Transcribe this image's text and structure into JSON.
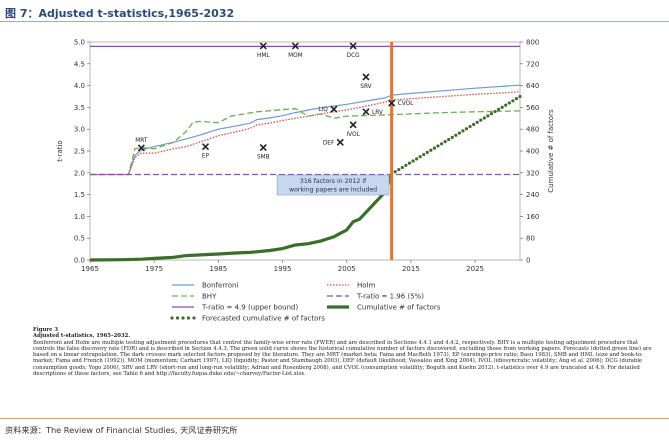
{
  "figure_title": "图 7：Adjusted t-statistics,1965-2032",
  "source_note": "资料来源：The Review of Financial Studies, 天风证券研究所",
  "caption": {
    "title": "Figure 3",
    "subtitle": "Adjusted t-statistics, 1965–2032.",
    "body": "Bonferroni and Holm are multiple testing adjustment procedures that control the family-wise error rate (FWER) and are described in Sections 4.4.1 and 4.4.2, respectively. BHY is a multiple testing adjustment procedure that controls the false discovery rate (FDR) and is described in Section 4.4.3. The green solid curve shows the historical cumulative number of factors discovered, excluding those from working papers. Forecasts (dotted green line) are based on a linear extrapolation. The dark crosses mark selected factors proposed by the literature. They are MRT (market beta; Fama and MacBeth 1973), EP (earnings-price ratio; Basu 1983), SMB and HML (size and book-to-market; Fama and French (1992)), MOM (momentum; Carhart 1997), LIQ (liquidity; Pastor and Stambaugh 2003), DEF (default likelihood; Vassalou and Xing 2004), IVOL (idiosyncratic volatility; Ang et al. 2006); DCG (durable consumption goods; Yogo 2006), SRV and LRV (short-run and long-run volatility; Adrian and Rosenberg 2008), and CVOL (consumption volatility; Boguth and Kuehn 2012). t-statistics over 4.9 are truncated at 4.9. For detailed descriptions of these factors, see Table 6 and http://faculty.fuqua.duke.edu/~charvey/Factor-List.xlsx."
  },
  "chart_data": {
    "type": "line",
    "xlim": [
      1965,
      2032
    ],
    "x_ticks": [
      1965,
      1975,
      1985,
      1995,
      2005,
      2015,
      2025
    ],
    "ylabel": "t-ratio",
    "ylim": [
      0,
      5
    ],
    "y_ticks": [
      0.0,
      0.5,
      1.0,
      1.5,
      2.0,
      2.5,
      3.0,
      3.5,
      4.0,
      4.5,
      5.0
    ],
    "y2label": "Cumulative # of factors",
    "y2lim": [
      0,
      800
    ],
    "y2_ticks": [
      0,
      80,
      160,
      240,
      320,
      400,
      480,
      560,
      640,
      720,
      800
    ],
    "colors": {
      "bonferroni": "#6f9bd4",
      "holm": "#e0504a",
      "bhy": "#6ab04c",
      "t49": "#8a4fb0",
      "t196": "#8a4fb0",
      "cumulative": "#3b6e2a",
      "forecast": "#3b6e2a",
      "vline": "#e8732a",
      "marker": "#222222"
    },
    "series": [
      {
        "name": "Bonferroni",
        "key": "bonferroni",
        "style": "solid",
        "x": [
          1965,
          1971,
          1972,
          1973,
          1975,
          1978,
          1980,
          1982,
          1985,
          1988,
          1990,
          1991,
          1993,
          1995,
          1997,
          1999,
          2001,
          2003,
          2005,
          2007,
          2009,
          2011,
          2012,
          2015,
          2020,
          2025,
          2030,
          2032
        ],
        "y": [
          1.96,
          1.96,
          2.4,
          2.52,
          2.6,
          2.7,
          2.78,
          2.86,
          3.0,
          3.08,
          3.14,
          3.22,
          3.26,
          3.31,
          3.38,
          3.44,
          3.49,
          3.53,
          3.57,
          3.62,
          3.67,
          3.72,
          3.78,
          3.82,
          3.88,
          3.94,
          3.99,
          4.01
        ]
      },
      {
        "name": "Holm",
        "key": "holm",
        "style": "dotted",
        "x": [
          1965,
          1971,
          1972,
          1973,
          1975,
          1978,
          1980,
          1982,
          1985,
          1988,
          1990,
          1991,
          1993,
          1995,
          1997,
          1999,
          2001,
          2003,
          2005,
          2007,
          2009,
          2011,
          2012,
          2015,
          2020,
          2025,
          2030,
          2032
        ],
        "y": [
          1.96,
          1.96,
          2.35,
          2.45,
          2.45,
          2.55,
          2.6,
          2.7,
          2.85,
          2.95,
          3.02,
          3.1,
          3.14,
          3.2,
          3.25,
          3.3,
          3.35,
          3.4,
          3.44,
          3.5,
          3.56,
          3.62,
          3.67,
          3.7,
          3.75,
          3.8,
          3.84,
          3.86
        ]
      },
      {
        "name": "BHY",
        "key": "bhy",
        "style": "dashed",
        "x": [
          1965,
          1971,
          1972,
          1973,
          1975,
          1978,
          1980,
          1981,
          1982,
          1985,
          1987,
          1991,
          1995,
          1997,
          1999,
          2001,
          2003,
          2005,
          2010,
          2015,
          2020,
          2025,
          2032
        ],
        "y": [
          1.96,
          1.96,
          2.55,
          2.58,
          2.55,
          2.7,
          2.95,
          3.15,
          3.18,
          3.15,
          3.3,
          3.4,
          3.45,
          3.47,
          3.3,
          3.35,
          3.25,
          3.3,
          3.32,
          3.35,
          3.38,
          3.4,
          3.42
        ]
      },
      {
        "name": "T-ratio = 4.9 (upper bound)",
        "key": "t49",
        "style": "solid",
        "x": [
          1965,
          2032
        ],
        "y": [
          4.9,
          4.9
        ]
      },
      {
        "name": "T-ratio = 1.96 (5%)",
        "key": "t196",
        "style": "dashed",
        "x": [
          1965,
          2032
        ],
        "y": [
          1.96,
          1.96
        ]
      },
      {
        "name": "Cumulative # of factors",
        "key": "cumulative",
        "style": "thick",
        "axis": "y2",
        "x": [
          1965,
          1970,
          1973,
          1975,
          1978,
          1980,
          1983,
          1985,
          1988,
          1990,
          1993,
          1995,
          1997,
          1999,
          2001,
          2003,
          2004,
          2005,
          2006,
          2007,
          2008,
          2009,
          2010,
          2011,
          2012
        ],
        "y": [
          0,
          1,
          3,
          6,
          10,
          16,
          20,
          22,
          26,
          28,
          35,
          42,
          55,
          60,
          70,
          85,
          98,
          110,
          140,
          150,
          175,
          200,
          225,
          250,
          316
        ]
      },
      {
        "name": "Forecasted cumulative # of factors",
        "key": "forecast",
        "style": "dots",
        "axis": "y2",
        "x": [
          2012,
          2032
        ],
        "y": [
          316,
          600
        ]
      }
    ],
    "legend": {
      "position": "bottom",
      "items": [
        {
          "label": "Bonferroni",
          "key": "bonferroni",
          "style": "solid"
        },
        {
          "label": "Holm",
          "key": "holm",
          "style": "dotted"
        },
        {
          "label": "BHY",
          "key": "bhy",
          "style": "dashed"
        },
        {
          "label": "T-ratio = 1.96 (5%)",
          "key": "t196",
          "style": "dashed"
        },
        {
          "label": "T-ratio = 4.9 (upper bound)",
          "key": "t49",
          "style": "solid"
        },
        {
          "label": "Cumulative # of factors",
          "key": "cumulative",
          "style": "thick"
        },
        {
          "label": "Forecasted cumulative # of factors",
          "key": "forecast",
          "style": "dots"
        }
      ]
    },
    "factors": [
      {
        "label": "MRT",
        "year": 1973,
        "t": 2.57,
        "label_pos": "above"
      },
      {
        "label": "EP",
        "year": 1983,
        "t": 2.6,
        "label_pos": "below"
      },
      {
        "label": "SMB",
        "year": 1992,
        "t": 2.58,
        "label_pos": "below"
      },
      {
        "label": "HML",
        "year": 1992,
        "t": 4.91,
        "label_pos": "below"
      },
      {
        "label": "MOM",
        "year": 1997,
        "t": 4.91,
        "label_pos": "below"
      },
      {
        "label": "LIQ",
        "year": 2003,
        "t": 3.46,
        "label_pos": "left"
      },
      {
        "label": "DEF",
        "year": 2004,
        "t": 2.7,
        "label_pos": "left"
      },
      {
        "label": "IVOL",
        "year": 2006,
        "t": 3.1,
        "label_pos": "below"
      },
      {
        "label": "DCG",
        "year": 2006,
        "t": 4.91,
        "label_pos": "below"
      },
      {
        "label": "SRV",
        "year": 2008,
        "t": 4.2,
        "label_pos": "below"
      },
      {
        "label": "LRV",
        "year": 2008,
        "t": 3.4,
        "label_pos": "right"
      },
      {
        "label": "CVOL",
        "year": 2012,
        "t": 3.6,
        "label_pos": "right"
      }
    ],
    "vline_year": 2012,
    "annotation": {
      "text": "316  factors in 2012 if  working papers are included",
      "year": 2011.6,
      "t": 1.72
    }
  }
}
